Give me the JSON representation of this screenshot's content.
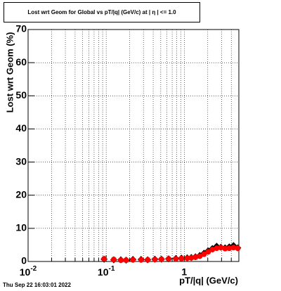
{
  "chart_data": {
    "type": "scatter",
    "title": "Lost wrt Geom for Global vs pT/|q| (GeV/c) at |  η | <= 1.0",
    "x_label": "pT/|q| (GeV/c)",
    "y_label": "Lost wrt Geom (%)",
    "footer": "Thu Sep 22 16:03:01 2022",
    "log_x": true,
    "grid": true,
    "xlim": [
      0.01,
      5
    ],
    "ylim": [
      0,
      70
    ],
    "xticks": [
      {
        "value": 0.01,
        "label": "10",
        "exponent": "-2"
      },
      {
        "value": 0.1,
        "label": "10",
        "exponent": "-1"
      },
      1
    ],
    "xminorticks": [
      0.02,
      0.03,
      0.04,
      0.05,
      0.06,
      0.07,
      0.08,
      0.09,
      0.2,
      0.3,
      0.4,
      0.5,
      0.6,
      0.7,
      0.8,
      0.9,
      2,
      3,
      4
    ],
    "yticks": [
      0,
      10,
      20,
      30,
      40,
      50,
      60,
      70
    ],
    "x": [
      0.094,
      0.125,
      0.154,
      0.18,
      0.22,
      0.28,
      0.34,
      0.42,
      0.51,
      0.63,
      0.78,
      0.92,
      1.09,
      1.23,
      1.39,
      1.58,
      1.79,
      2.02,
      2.29,
      2.6,
      2.94,
      3.33,
      3.77,
      4.27,
      4.84
    ],
    "series": [
      {
        "color": "#000000",
        "marker": "diamond",
        "values": [
          0.7,
          0.5,
          0.5,
          0.4,
          0.6,
          0.6,
          0.5,
          0.7,
          0.7,
          0.8,
          0.9,
          1.0,
          1.1,
          1.2,
          1.4,
          1.8,
          2.5,
          3.2,
          3.9,
          4.6,
          4.3,
          4.1,
          4.4,
          4.8,
          4.1
        ]
      },
      {
        "color": "#ff0000",
        "marker": "circle",
        "values": [
          0.8,
          0.6,
          0.4,
          0.4,
          0.5,
          0.5,
          0.5,
          0.6,
          0.7,
          0.8,
          0.8,
          0.9,
          1.0,
          1.1,
          1.3,
          1.6,
          2.2,
          2.9,
          3.6,
          4.0,
          4.2,
          3.9,
          4.0,
          4.2,
          4.0
        ]
      }
    ]
  }
}
